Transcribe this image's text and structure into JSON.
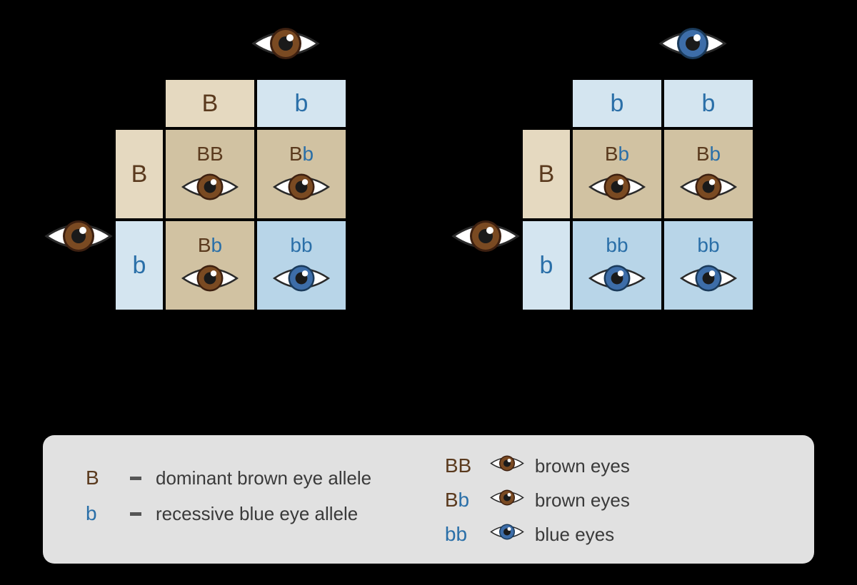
{
  "colors": {
    "brown_allele_text": "#5a3a1e",
    "blue_allele_text": "#2a6fa8",
    "brown_light_bg": "#e5d9c0",
    "brown_dark_bg": "#d1c2a2",
    "blue_light_bg": "#d4e5f0",
    "blue_dark_bg": "#b8d5e8",
    "legend_bg": "#e1e1e1",
    "legend_text": "#3a3a3a",
    "eye_brown_iris": "#7a4a22",
    "eye_brown_outer": "#3d2010",
    "eye_blue_iris": "#3d6da8",
    "eye_blue_outer": "#1a3a5a",
    "eye_white": "#ffffff",
    "eye_outline": "#2a2a2a",
    "pupil": "#1a1a1a",
    "highlight": "#ffffff"
  },
  "punnett_left": {
    "top_parent_eye": "brown",
    "left_parent_eye": "brown",
    "col_headers": [
      {
        "allele": "B",
        "bg": "#e5d9c0",
        "color": "#5a3a1e"
      },
      {
        "allele": "b",
        "bg": "#d4e5f0",
        "color": "#2a6fa8"
      }
    ],
    "row_headers": [
      {
        "allele": "B",
        "bg": "#e5d9c0",
        "color": "#5a3a1e"
      },
      {
        "allele": "b",
        "bg": "#d4e5f0",
        "color": "#2a6fa8"
      }
    ],
    "cells": [
      [
        {
          "genotype": [
            {
              "t": "B",
              "c": "#5a3a1e"
            },
            {
              "t": "B",
              "c": "#5a3a1e"
            }
          ],
          "eye": "brown",
          "bg": "#d1c2a2"
        },
        {
          "genotype": [
            {
              "t": "B",
              "c": "#5a3a1e"
            },
            {
              "t": "b",
              "c": "#2a6fa8"
            }
          ],
          "eye": "brown",
          "bg": "#d1c2a2"
        }
      ],
      [
        {
          "genotype": [
            {
              "t": "B",
              "c": "#5a3a1e"
            },
            {
              "t": "b",
              "c": "#2a6fa8"
            }
          ],
          "eye": "brown",
          "bg": "#d1c2a2"
        },
        {
          "genotype": [
            {
              "t": "b",
              "c": "#2a6fa8"
            },
            {
              "t": "b",
              "c": "#2a6fa8"
            }
          ],
          "eye": "blue",
          "bg": "#b8d5e8"
        }
      ]
    ]
  },
  "punnett_right": {
    "top_parent_eye": "blue",
    "left_parent_eye": "brown",
    "col_headers": [
      {
        "allele": "b",
        "bg": "#d4e5f0",
        "color": "#2a6fa8"
      },
      {
        "allele": "b",
        "bg": "#d4e5f0",
        "color": "#2a6fa8"
      }
    ],
    "row_headers": [
      {
        "allele": "B",
        "bg": "#e5d9c0",
        "color": "#5a3a1e"
      },
      {
        "allele": "b",
        "bg": "#d4e5f0",
        "color": "#2a6fa8"
      }
    ],
    "cells": [
      [
        {
          "genotype": [
            {
              "t": "B",
              "c": "#5a3a1e"
            },
            {
              "t": "b",
              "c": "#2a6fa8"
            }
          ],
          "eye": "brown",
          "bg": "#d1c2a2"
        },
        {
          "genotype": [
            {
              "t": "B",
              "c": "#5a3a1e"
            },
            {
              "t": "b",
              "c": "#2a6fa8"
            }
          ],
          "eye": "brown",
          "bg": "#d1c2a2"
        }
      ],
      [
        {
          "genotype": [
            {
              "t": "b",
              "c": "#2a6fa8"
            },
            {
              "t": "b",
              "c": "#2a6fa8"
            }
          ],
          "eye": "blue",
          "bg": "#b8d5e8"
        },
        {
          "genotype": [
            {
              "t": "b",
              "c": "#2a6fa8"
            },
            {
              "t": "b",
              "c": "#2a6fa8"
            }
          ],
          "eye": "blue",
          "bg": "#b8d5e8"
        }
      ]
    ]
  },
  "legend": {
    "left": [
      {
        "allele": "B",
        "allele_color": "#5a3a1e",
        "text": "dominant brown eye allele"
      },
      {
        "allele": "b",
        "allele_color": "#2a6fa8",
        "text": "recessive blue eye allele"
      }
    ],
    "right": [
      {
        "genotype": [
          {
            "t": "B",
            "c": "#5a3a1e"
          },
          {
            "t": "B",
            "c": "#5a3a1e"
          }
        ],
        "eye": "brown",
        "text": "brown eyes"
      },
      {
        "genotype": [
          {
            "t": "B",
            "c": "#5a3a1e"
          },
          {
            "t": "b",
            "c": "#2a6fa8"
          }
        ],
        "eye": "brown",
        "text": "brown eyes"
      },
      {
        "genotype": [
          {
            "t": "b",
            "c": "#2a6fa8"
          },
          {
            "t": "b",
            "c": "#2a6fa8"
          }
        ],
        "eye": "blue",
        "text": "blue eyes"
      }
    ]
  },
  "fontsize": {
    "header": 34,
    "genotype": 28,
    "legend": 26
  }
}
